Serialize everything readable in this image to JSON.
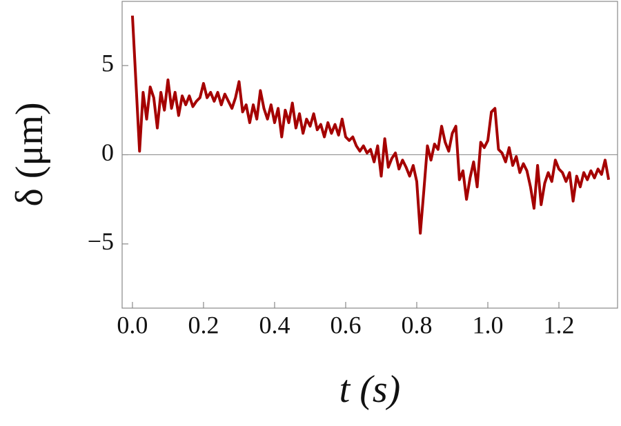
{
  "chart_data": {
    "type": "line",
    "xlabel": "t (s)",
    "ylabel": "δ (μm)",
    "x": [
      0,
      0.01,
      0.02,
      0.03,
      0.04,
      0.05,
      0.06,
      0.07,
      0.08,
      0.09,
      0.1,
      0.11,
      0.12,
      0.13,
      0.14,
      0.15,
      0.16,
      0.17,
      0.18,
      0.19,
      0.2,
      0.21,
      0.22,
      0.23,
      0.24,
      0.25,
      0.26,
      0.27,
      0.28,
      0.29,
      0.3,
      0.31,
      0.32,
      0.33,
      0.34,
      0.35,
      0.36,
      0.37,
      0.38,
      0.39,
      0.4,
      0.41,
      0.42,
      0.43,
      0.44,
      0.45,
      0.46,
      0.47,
      0.48,
      0.49,
      0.5,
      0.51,
      0.52,
      0.53,
      0.54,
      0.55,
      0.56,
      0.57,
      0.58,
      0.59,
      0.6,
      0.61,
      0.62,
      0.63,
      0.64,
      0.65,
      0.66,
      0.67,
      0.68,
      0.69,
      0.7,
      0.71,
      0.72,
      0.73,
      0.74,
      0.75,
      0.76,
      0.77,
      0.78,
      0.79,
      0.8,
      0.81,
      0.82,
      0.83,
      0.84,
      0.85,
      0.86,
      0.87,
      0.88,
      0.89,
      0.9,
      0.91,
      0.92,
      0.93,
      0.94,
      0.95,
      0.96,
      0.97,
      0.98,
      0.99,
      1.0,
      1.01,
      1.02,
      1.03,
      1.04,
      1.05,
      1.06,
      1.07,
      1.08,
      1.09,
      1.1,
      1.11,
      1.12,
      1.13,
      1.14,
      1.15,
      1.16,
      1.17,
      1.18,
      1.19,
      1.2,
      1.21,
      1.22,
      1.23,
      1.24,
      1.25,
      1.26,
      1.27,
      1.28,
      1.29,
      1.3,
      1.31,
      1.32,
      1.33,
      1.34
    ],
    "series": [
      {
        "color": "#a50000",
        "values": [
          7.8,
          4.0,
          0.2,
          3.5,
          2.0,
          3.8,
          3.2,
          1.5,
          3.5,
          2.5,
          4.2,
          2.6,
          3.5,
          2.2,
          3.3,
          2.8,
          3.3,
          2.7,
          3.0,
          3.2,
          4.0,
          3.2,
          3.5,
          3.0,
          3.5,
          2.8,
          3.4,
          3.0,
          2.6,
          3.2,
          4.1,
          2.4,
          2.8,
          1.8,
          2.8,
          2.0,
          3.6,
          2.6,
          2.0,
          2.8,
          1.8,
          2.6,
          1.0,
          2.5,
          1.8,
          2.9,
          1.5,
          2.3,
          1.2,
          2.0,
          1.6,
          2.3,
          1.4,
          1.7,
          1.0,
          1.8,
          1.2,
          1.7,
          1.1,
          2.0,
          1.0,
          0.8,
          1.0,
          0.5,
          0.2,
          0.5,
          0.1,
          0.3,
          -0.4,
          0.5,
          -1.2,
          0.9,
          -0.7,
          -0.2,
          0.1,
          -0.8,
          -0.3,
          -0.7,
          -1.2,
          -0.6,
          -1.5,
          -4.4,
          -2.0,
          0.5,
          -0.3,
          0.6,
          0.3,
          1.6,
          0.7,
          0.2,
          1.2,
          1.6,
          -1.4,
          -0.9,
          -2.5,
          -1.3,
          -0.4,
          -1.8,
          0.7,
          0.4,
          0.8,
          2.4,
          2.6,
          0.3,
          0.1,
          -0.4,
          0.4,
          -0.6,
          -0.1,
          -1.0,
          -0.5,
          -0.9,
          -1.8,
          -3.0,
          -0.6,
          -2.8,
          -1.6,
          -1.0,
          -1.5,
          -0.3,
          -0.8,
          -1.0,
          -1.5,
          -1.0,
          -2.6,
          -1.2,
          -1.8,
          -1.0,
          -1.4,
          -0.9,
          -1.3,
          -0.8,
          -1.1,
          -0.3,
          -1.4
        ]
      }
    ],
    "xlim": [
      -0.029,
      1.365
    ],
    "ylim": [
      -8.6,
      8.6
    ],
    "xticks": [
      {
        "value": 0,
        "label": "0.0"
      },
      0.2,
      0.4,
      0.6,
      0.8,
      {
        "value": 1,
        "label": "1.0"
      },
      1.2
    ],
    "yticks": [
      {
        "value": -5,
        "label": "−5"
      },
      0,
      5
    ],
    "zero_line": true
  }
}
